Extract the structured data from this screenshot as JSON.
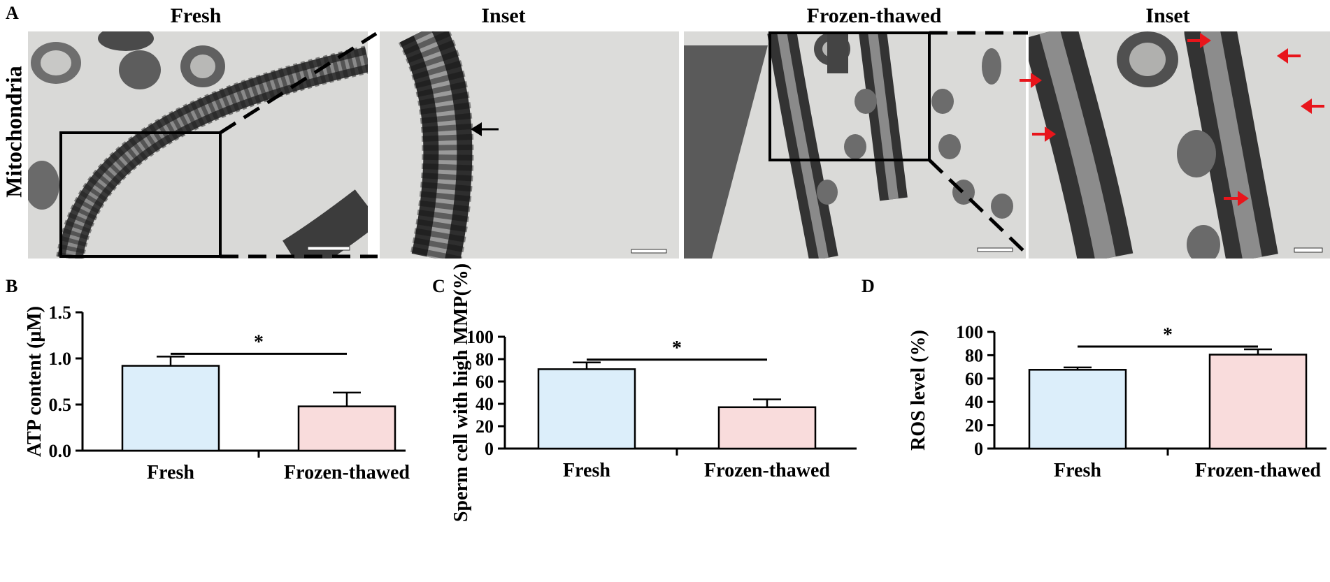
{
  "panel_labels": {
    "a": "A",
    "b": "B",
    "c": "C",
    "d": "D"
  },
  "panel_a": {
    "row_label": "Mitochondria",
    "columns": [
      "Fresh",
      "Inset",
      "Frozen-thawed",
      "Inset"
    ]
  },
  "colors": {
    "fresh_fill": "#dceefa",
    "frozen_fill": "#f9dcdc",
    "bar_stroke": "#000000",
    "arrow_red": "#e8151b",
    "arrow_black": "#000000"
  },
  "chart_data": [
    {
      "panel": "B",
      "type": "bar",
      "categories": [
        "Fresh",
        "Frozen-thawed"
      ],
      "values": [
        0.92,
        0.48
      ],
      "errors": [
        0.1,
        0.15
      ],
      "ylabel": "ATP content (μM)",
      "ylim": [
        0,
        1.5
      ],
      "yticks": [
        "0.0",
        "0.5",
        "1.0",
        "1.5"
      ],
      "significance": "*"
    },
    {
      "panel": "C",
      "type": "bar",
      "categories": [
        "Fresh",
        "Frozen-thawed"
      ],
      "values": [
        71,
        37
      ],
      "errors": [
        6,
        7
      ],
      "ylabel": "Sperm cell with high MMP(%)",
      "ylim": [
        0,
        100
      ],
      "yticks": [
        "0",
        "20",
        "40",
        "60",
        "80",
        "100"
      ],
      "significance": "*"
    },
    {
      "panel": "D",
      "type": "bar",
      "categories": [
        "Fresh",
        "Frozen-thawed"
      ],
      "values": [
        67.5,
        80.5
      ],
      "errors": [
        2,
        4.5
      ],
      "ylabel": "ROS level (%)",
      "ylim": [
        0,
        100
      ],
      "yticks": [
        "0",
        "20",
        "40",
        "60",
        "80",
        "100"
      ],
      "significance": "*"
    }
  ]
}
